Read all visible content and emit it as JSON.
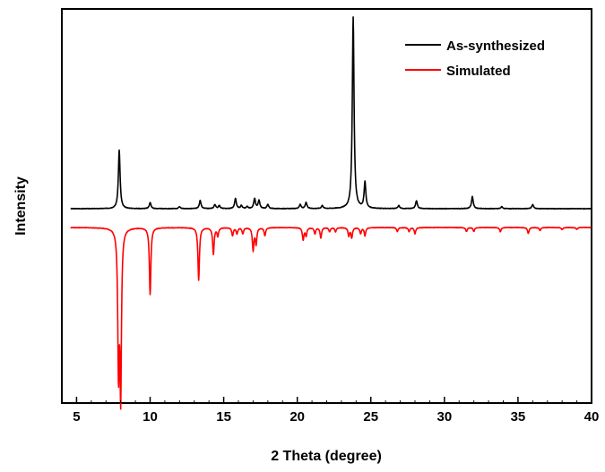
{
  "chart_data": {
    "type": "line",
    "xlabel": "2 Theta (degree)",
    "ylabel": "Intensity",
    "xlim": [
      4,
      40
    ],
    "xticks": [
      5,
      10,
      15,
      20,
      25,
      30,
      35,
      40
    ],
    "yticks_shown": false,
    "legend_position": "top-right",
    "series": [
      {
        "name": "As-synthesized",
        "color": "#000000",
        "baseline": 0,
        "peaks": [
          {
            "x": 7.9,
            "y": 29
          },
          {
            "x": 10.0,
            "y": 3
          },
          {
            "x": 12.0,
            "y": 1
          },
          {
            "x": 13.4,
            "y": 4
          },
          {
            "x": 14.4,
            "y": 2
          },
          {
            "x": 14.7,
            "y": 1.5
          },
          {
            "x": 15.8,
            "y": 5
          },
          {
            "x": 16.2,
            "y": 1.5
          },
          {
            "x": 16.6,
            "y": 1
          },
          {
            "x": 17.1,
            "y": 5
          },
          {
            "x": 17.4,
            "y": 4
          },
          {
            "x": 18.0,
            "y": 2
          },
          {
            "x": 20.2,
            "y": 2
          },
          {
            "x": 20.6,
            "y": 3
          },
          {
            "x": 21.7,
            "y": 1.5
          },
          {
            "x": 23.8,
            "y": 95
          },
          {
            "x": 24.6,
            "y": 13
          },
          {
            "x": 26.9,
            "y": 1.5
          },
          {
            "x": 28.1,
            "y": 4
          },
          {
            "x": 31.9,
            "y": 6
          },
          {
            "x": 33.9,
            "y": 1
          },
          {
            "x": 36.0,
            "y": 2
          }
        ]
      },
      {
        "name": "Simulated",
        "color": "#ff0000",
        "baseline": 0,
        "peaks": [
          {
            "x": 7.85,
            "y": -68
          },
          {
            "x": 8.0,
            "y": -80
          },
          {
            "x": 10.0,
            "y": -33
          },
          {
            "x": 13.3,
            "y": -26
          },
          {
            "x": 14.3,
            "y": -13
          },
          {
            "x": 14.6,
            "y": -4
          },
          {
            "x": 15.6,
            "y": -4
          },
          {
            "x": 15.9,
            "y": -3
          },
          {
            "x": 16.3,
            "y": -3
          },
          {
            "x": 17.0,
            "y": -11
          },
          {
            "x": 17.2,
            "y": -8
          },
          {
            "x": 17.8,
            "y": -4
          },
          {
            "x": 20.4,
            "y": -6
          },
          {
            "x": 20.6,
            "y": -4
          },
          {
            "x": 21.2,
            "y": -3
          },
          {
            "x": 21.6,
            "y": -5
          },
          {
            "x": 22.2,
            "y": -2
          },
          {
            "x": 22.6,
            "y": -2
          },
          {
            "x": 23.5,
            "y": -4
          },
          {
            "x": 23.7,
            "y": -5
          },
          {
            "x": 24.3,
            "y": -3
          },
          {
            "x": 24.6,
            "y": -4
          },
          {
            "x": 26.8,
            "y": -2
          },
          {
            "x": 27.6,
            "y": -2
          },
          {
            "x": 28.0,
            "y": -3
          },
          {
            "x": 31.5,
            "y": -2
          },
          {
            "x": 32.0,
            "y": -2
          },
          {
            "x": 33.8,
            "y": -2
          },
          {
            "x": 35.7,
            "y": -3
          },
          {
            "x": 36.5,
            "y": -1.5
          },
          {
            "x": 38.0,
            "y": -1
          },
          {
            "x": 39.0,
            "y": -1
          }
        ]
      }
    ]
  }
}
